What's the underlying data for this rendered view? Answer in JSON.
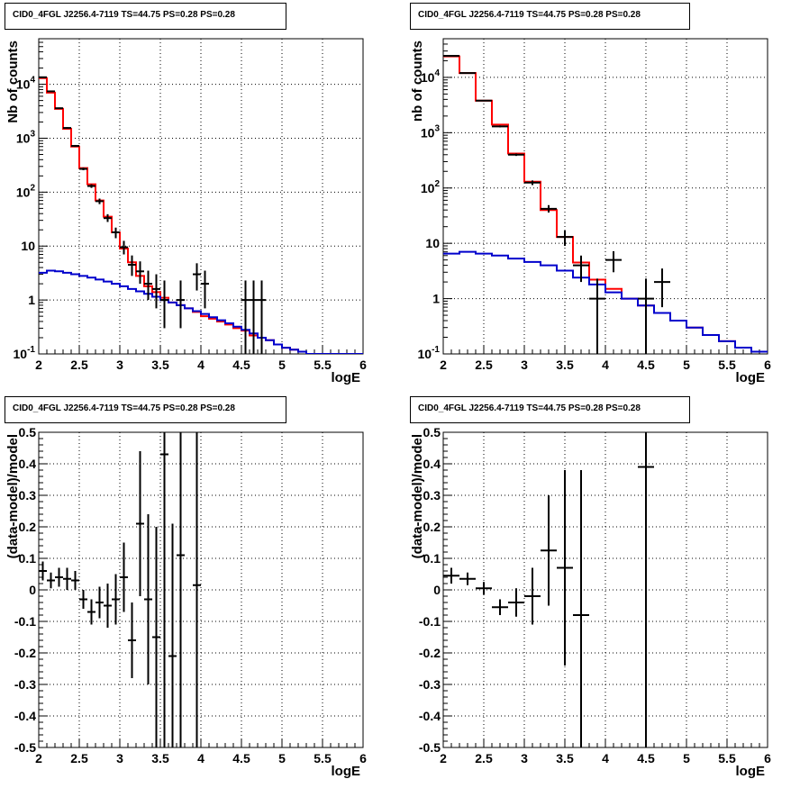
{
  "chart_data": [
    {
      "type": "histogram",
      "title": "CID0_4FGL J2256.4-7119 TS=44.75 PS=0.28 PS=0.28",
      "xlabel": "logE",
      "ylabel": "Nb of counts",
      "xlim": [
        2,
        6
      ],
      "ylim": [
        0.1,
        70000
      ],
      "yscale": "log",
      "grid": true,
      "x_ticks": [
        "2",
        "2.5",
        "3",
        "3.5",
        "4",
        "4.5",
        "5",
        "5.5",
        "6"
      ],
      "y_ticks": [
        "10^-1",
        "1",
        "10",
        "10^2",
        "10^3",
        "10^4"
      ],
      "bin_edges": [
        2.0,
        2.1,
        2.2,
        2.3,
        2.4,
        2.5,
        2.6,
        2.7,
        2.8,
        2.9,
        3.0,
        3.1,
        3.2,
        3.3,
        3.4,
        3.5,
        3.6,
        3.7,
        3.8,
        3.9,
        4.0,
        4.1,
        4.2,
        4.3,
        4.4,
        4.5,
        4.6,
        4.7,
        4.8,
        4.9,
        5.0,
        5.1,
        5.2,
        5.3,
        5.4,
        5.5,
        5.6,
        5.7,
        5.8,
        5.9,
        6.0
      ],
      "series": [
        {
          "role": "total-model",
          "color": "#ff0000",
          "values": [
            13000,
            7000,
            3500,
            1500,
            700,
            280,
            140,
            70,
            35,
            18,
            9,
            5,
            2.8,
            1.8,
            1.4,
            1.1,
            0.9,
            0.8,
            0.7,
            0.6,
            0.5,
            0.45,
            0.4,
            0.35,
            0.3,
            0.27,
            0.22,
            0.2,
            0.18,
            0.15,
            0.13,
            0.12,
            0.11,
            0.1,
            0.1,
            0.1,
            0.1,
            0.1,
            0.1,
            0.1
          ]
        },
        {
          "role": "source-model",
          "color": "#0000cc",
          "values": [
            3.2,
            3.5,
            3.4,
            3.2,
            3.0,
            2.8,
            2.6,
            2.4,
            2.2,
            2.0,
            1.8,
            1.6,
            1.45,
            1.3,
            1.15,
            1.0,
            0.9,
            0.8,
            0.7,
            0.62,
            0.55,
            0.48,
            0.42,
            0.37,
            0.32,
            0.28,
            0.24,
            0.2,
            0.18,
            0.15,
            0.13,
            0.12,
            0.11,
            0.1,
            0.1,
            0.1,
            0.1,
            0.1,
            0.1,
            0.1
          ]
        },
        {
          "role": "data",
          "color": "#000000",
          "points": [
            {
              "x": 2.05,
              "y": 13500,
              "lo": 13300,
              "hi": 13700
            },
            {
              "x": 2.15,
              "y": 7400,
              "lo": 7300,
              "hi": 7500
            },
            {
              "x": 2.25,
              "y": 3600,
              "lo": 3500,
              "hi": 3700
            },
            {
              "x": 2.35,
              "y": 1550,
              "lo": 1500,
              "hi": 1600
            },
            {
              "x": 2.45,
              "y": 720,
              "lo": 690,
              "hi": 750
            },
            {
              "x": 2.55,
              "y": 270,
              "lo": 255,
              "hi": 285
            },
            {
              "x": 2.65,
              "y": 130,
              "lo": 120,
              "hi": 140
            },
            {
              "x": 2.75,
              "y": 68,
              "lo": 60,
              "hi": 76
            },
            {
              "x": 2.85,
              "y": 33,
              "lo": 28,
              "hi": 39
            },
            {
              "x": 2.95,
              "y": 18,
              "lo": 14,
              "hi": 22
            },
            {
              "x": 3.05,
              "y": 9.5,
              "lo": 7,
              "hi": 12.5
            },
            {
              "x": 3.15,
              "y": 4.5,
              "lo": 2.8,
              "hi": 6.7
            },
            {
              "x": 3.25,
              "y": 3.4,
              "lo": 2,
              "hi": 5.2
            },
            {
              "x": 3.35,
              "y": 2,
              "lo": 1,
              "hi": 3.5
            },
            {
              "x": 3.45,
              "y": 1.6,
              "lo": 0.7,
              "hi": 3
            },
            {
              "x": 3.55,
              "y": 1,
              "lo": 0.3,
              "hi": 2.3
            },
            {
              "x": 3.75,
              "y": 1,
              "lo": 0.3,
              "hi": 2.3
            },
            {
              "x": 3.95,
              "y": 3,
              "lo": 1.5,
              "hi": 4.8
            },
            {
              "x": 4.05,
              "y": 2,
              "lo": 0.7,
              "hi": 3.5
            },
            {
              "x": 4.55,
              "y": 1,
              "lo": 0.1,
              "hi": 2.3
            },
            {
              "x": 4.65,
              "y": 1,
              "lo": 0.1,
              "hi": 2.3
            },
            {
              "x": 4.75,
              "y": 1,
              "lo": 0.1,
              "hi": 2.3
            }
          ]
        }
      ]
    },
    {
      "type": "histogram",
      "title": "CID0_4FGL J2256.4-7119 TS=44.75 PS=0.28 PS=0.28",
      "xlabel": "logE",
      "ylabel": "nb of counts",
      "xlim": [
        2,
        6
      ],
      "ylim": [
        0.1,
        50000
      ],
      "yscale": "log",
      "grid": true,
      "x_ticks": [
        "2",
        "2.5",
        "3",
        "3.5",
        "4",
        "4.5",
        "5",
        "5.5",
        "6"
      ],
      "y_ticks": [
        "10^-1",
        "1",
        "10",
        "10^2",
        "10^3",
        "10^4"
      ],
      "bin_edges": [
        2.0,
        2.2,
        2.4,
        2.6,
        2.8,
        3.0,
        3.2,
        3.4,
        3.6,
        3.8,
        4.0,
        4.2,
        4.4,
        4.6,
        4.8,
        5.0,
        5.2,
        5.4,
        5.6,
        5.8,
        6.0
      ],
      "series": [
        {
          "role": "total-model",
          "color": "#ff0000",
          "values": [
            24000,
            12000,
            3800,
            1400,
            420,
            130,
            40,
            13,
            4.5,
            2.2,
            1.5,
            1.0,
            0.75,
            0.55,
            0.4,
            0.3,
            0.22,
            0.17,
            0.13,
            0.11
          ]
        },
        {
          "role": "source-model",
          "color": "#0000cc",
          "values": [
            6.5,
            7.0,
            6.5,
            6.0,
            5.3,
            4.6,
            4.0,
            3.2,
            2.4,
            1.8,
            1.3,
            1.0,
            0.75,
            0.55,
            0.4,
            0.3,
            0.22,
            0.17,
            0.13,
            0.11
          ]
        },
        {
          "role": "data",
          "color": "#000000",
          "points": [
            {
              "x": 2.1,
              "y": 24500,
              "lo": 24300,
              "hi": 24700
            },
            {
              "x": 2.3,
              "y": 12000,
              "lo": 11800,
              "hi": 12200
            },
            {
              "x": 2.5,
              "y": 3800,
              "lo": 3700,
              "hi": 3900
            },
            {
              "x": 2.7,
              "y": 1300,
              "lo": 1250,
              "hi": 1350
            },
            {
              "x": 2.9,
              "y": 400,
              "lo": 380,
              "hi": 420
            },
            {
              "x": 3.1,
              "y": 125,
              "lo": 113,
              "hi": 137
            },
            {
              "x": 3.3,
              "y": 42,
              "lo": 36,
              "hi": 49
            },
            {
              "x": 3.5,
              "y": 13,
              "lo": 9,
              "hi": 17
            },
            {
              "x": 3.7,
              "y": 4,
              "lo": 2,
              "hi": 6
            },
            {
              "x": 3.9,
              "y": 1,
              "lo": 0.1,
              "hi": 2.3
            },
            {
              "x": 4.1,
              "y": 5,
              "lo": 3,
              "hi": 7.2
            },
            {
              "x": 4.5,
              "y": 1,
              "lo": 0.1,
              "hi": 2.3
            },
            {
              "x": 4.7,
              "y": 2,
              "lo": 0.7,
              "hi": 3.5
            }
          ]
        }
      ]
    },
    {
      "type": "scatter",
      "title": "CID0_4FGL J2256.4-7119 TS=44.75 PS=0.28 PS=0.28",
      "xlabel": "logE",
      "ylabel": "(data-model)/model",
      "xlim": [
        2,
        6
      ],
      "ylim": [
        -0.5,
        0.5
      ],
      "grid": true,
      "x_ticks": [
        "2",
        "2.5",
        "3",
        "3.5",
        "4",
        "4.5",
        "5",
        "5.5",
        "6"
      ],
      "y_ticks": [
        "-0.5",
        "-0.4",
        "-0.3",
        "-0.2",
        "-0.1",
        "0",
        "0.1",
        "0.2",
        "0.3",
        "0.4",
        "0.5"
      ],
      "series": [
        {
          "role": "residuals",
          "color": "#000000",
          "points": [
            {
              "x": 2.05,
              "y": 0.06,
              "lo": 0.03,
              "hi": 0.09
            },
            {
              "x": 2.15,
              "y": 0.03,
              "lo": 0.005,
              "hi": 0.055
            },
            {
              "x": 2.25,
              "y": 0.04,
              "lo": 0.01,
              "hi": 0.07
            },
            {
              "x": 2.35,
              "y": 0.035,
              "lo": 0.0,
              "hi": 0.07
            },
            {
              "x": 2.45,
              "y": 0.03,
              "lo": 0.0,
              "hi": 0.06
            },
            {
              "x": 2.55,
              "y": -0.03,
              "lo": -0.06,
              "hi": 0.0
            },
            {
              "x": 2.65,
              "y": -0.07,
              "lo": -0.11,
              "hi": -0.03
            },
            {
              "x": 2.75,
              "y": -0.04,
              "lo": -0.09,
              "hi": 0.01
            },
            {
              "x": 2.85,
              "y": -0.05,
              "lo": -0.12,
              "hi": 0.02
            },
            {
              "x": 2.95,
              "y": -0.03,
              "lo": -0.11,
              "hi": 0.05
            },
            {
              "x": 3.05,
              "y": 0.04,
              "lo": -0.07,
              "hi": 0.15
            },
            {
              "x": 3.15,
              "y": -0.16,
              "lo": -0.28,
              "hi": -0.04
            },
            {
              "x": 3.25,
              "y": 0.21,
              "lo": -0.02,
              "hi": 0.44
            },
            {
              "x": 3.35,
              "y": -0.03,
              "lo": -0.3,
              "hi": 0.24
            },
            {
              "x": 3.45,
              "y": -0.15,
              "lo": -0.5,
              "hi": 0.2
            },
            {
              "x": 3.55,
              "y": 0.43,
              "lo": -0.5,
              "hi": 0.5
            },
            {
              "x": 3.65,
              "y": -0.21,
              "lo": -0.5,
              "hi": 0.21
            },
            {
              "x": 3.75,
              "y": 0.11,
              "lo": -0.5,
              "hi": 0.5
            },
            {
              "x": 3.95,
              "y": 0.015,
              "lo": -0.5,
              "hi": 0.5
            }
          ]
        }
      ]
    },
    {
      "type": "scatter",
      "title": "CID0_4FGL J2256.4-7119 TS=44.75 PS=0.28 PS=0.28",
      "xlabel": "logE",
      "ylabel": "(data-model)/model",
      "xlim": [
        2,
        6
      ],
      "ylim": [
        -0.5,
        0.5
      ],
      "grid": true,
      "x_ticks": [
        "2",
        "2.5",
        "3",
        "3.5",
        "4",
        "4.5",
        "5",
        "5.5",
        "6"
      ],
      "y_ticks": [
        "-0.5",
        "-0.4",
        "-0.3",
        "-0.2",
        "-0.1",
        "0",
        "0.1",
        "0.2",
        "0.3",
        "0.4",
        "0.5"
      ],
      "series": [
        {
          "role": "residuals",
          "color": "#000000",
          "points": [
            {
              "x": 2.1,
              "y": 0.045,
              "lo": 0.02,
              "hi": 0.07
            },
            {
              "x": 2.3,
              "y": 0.035,
              "lo": 0.015,
              "hi": 0.055
            },
            {
              "x": 2.5,
              "y": 0.005,
              "lo": -0.015,
              "hi": 0.025
            },
            {
              "x": 2.7,
              "y": -0.055,
              "lo": -0.08,
              "hi": -0.03
            },
            {
              "x": 2.9,
              "y": -0.04,
              "lo": -0.085,
              "hi": 0.005
            },
            {
              "x": 3.1,
              "y": -0.02,
              "lo": -0.11,
              "hi": 0.07
            },
            {
              "x": 3.3,
              "y": 0.125,
              "lo": -0.05,
              "hi": 0.3
            },
            {
              "x": 3.5,
              "y": 0.07,
              "lo": -0.24,
              "hi": 0.38
            },
            {
              "x": 3.7,
              "y": -0.08,
              "lo": -0.5,
              "hi": 0.38
            },
            {
              "x": 4.5,
              "y": 0.39,
              "lo": -0.5,
              "hi": 0.5
            }
          ]
        }
      ]
    }
  ]
}
